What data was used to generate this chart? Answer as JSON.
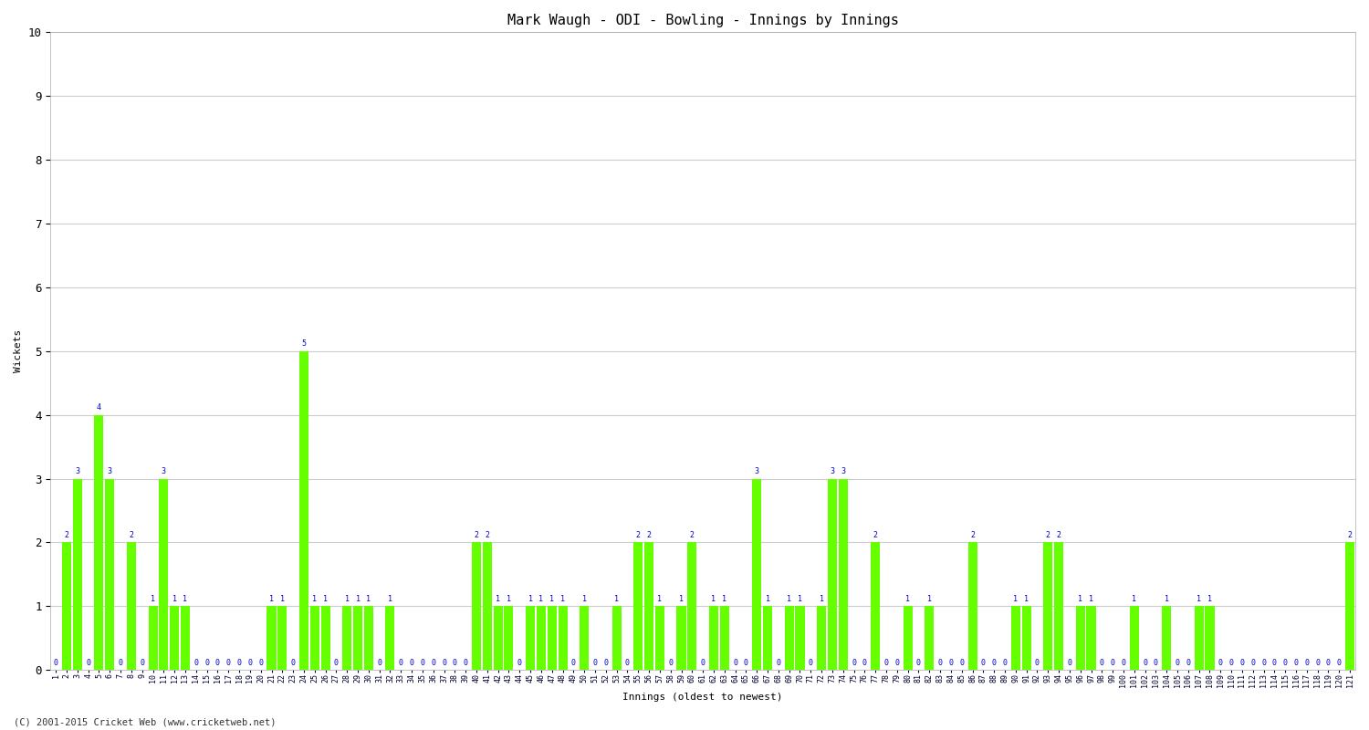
{
  "title": "Mark Waugh - ODI - Bowling - Innings by Innings",
  "ylabel": "Wickets",
  "xlabel": "Innings (oldest to newest)",
  "ylim": [
    0,
    10
  ],
  "yticks": [
    0,
    1,
    2,
    3,
    4,
    5,
    6,
    7,
    8,
    9,
    10
  ],
  "bar_color": "#66ff00",
  "label_color": "#0000cc",
  "background_color": "#ffffff",
  "grid_color": "#cccccc",
  "wickets": [
    0,
    2,
    3,
    0,
    4,
    3,
    0,
    2,
    0,
    1,
    3,
    1,
    1,
    0,
    0,
    0,
    0,
    0,
    0,
    0,
    1,
    1,
    0,
    5,
    1,
    1,
    0,
    1,
    1,
    1,
    0,
    1,
    0,
    0,
    0,
    0,
    0,
    0,
    0,
    2,
    2,
    1,
    1,
    0,
    1,
    1,
    1,
    1,
    0,
    1,
    0,
    0,
    1,
    0,
    2,
    2,
    1,
    0,
    1,
    2,
    0,
    1,
    1,
    0,
    0,
    3,
    1,
    0,
    1,
    1,
    0,
    1,
    3,
    3,
    0,
    0,
    2,
    0,
    0,
    1,
    0,
    1,
    0,
    0,
    0,
    2,
    0,
    0,
    0,
    1,
    1,
    0,
    2,
    2,
    0,
    1,
    1,
    0,
    0,
    0,
    1,
    0,
    0,
    1,
    0,
    0,
    1,
    1,
    0,
    0,
    0,
    0,
    0,
    0,
    0,
    0,
    0,
    0,
    0,
    0,
    2
  ],
  "title_fontsize": 11,
  "label_fontsize": 8,
  "tick_fontsize": 6,
  "annotation_fontsize": 6,
  "footer": "(C) 2001-2015 Cricket Web (www.cricketweb.net)"
}
